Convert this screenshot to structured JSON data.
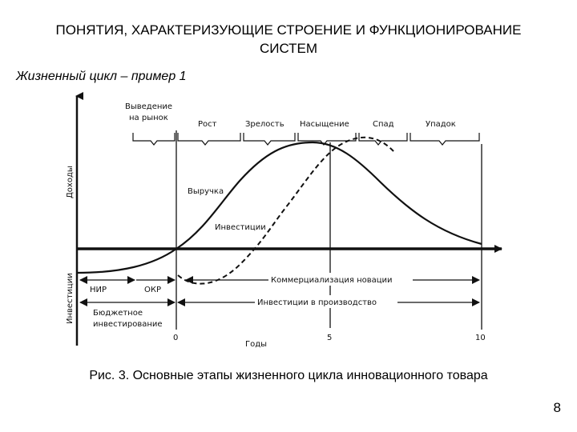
{
  "slide": {
    "title": "ПОНЯТИЯ, ХАРАКТЕРИЗУЮЩИЕ СТРОЕНИЕ И ФУНКЦИОНИРОВАНИЕ  СИСТЕМ",
    "subtitle": "Жизненный цикл – пример 1",
    "caption": "Рис. 3. Основные этапы жизненного цикла инновационного товара",
    "page_number": "8"
  },
  "diagram": {
    "y_axis_top_label": "Доходы",
    "y_axis_bottom_label": "Инвестиции",
    "x_axis_label": "Годы",
    "x_ticks": [
      "0",
      "5",
      "10"
    ],
    "stages": [
      {
        "line1": "Выведение",
        "line2": "на рынок"
      },
      {
        "line1": "Рост",
        "line2": ""
      },
      {
        "line1": "Зрелость",
        "line2": ""
      },
      {
        "line1": "Насыщение",
        "line2": ""
      },
      {
        "line1": "Спад",
        "line2": ""
      },
      {
        "line1": "Упадок",
        "line2": ""
      }
    ],
    "curve_labels": {
      "revenue": "Выручка",
      "investment": "Инвестиции"
    },
    "phase_labels": {
      "rnd": "НИР",
      "okr": "ОКР",
      "budget_line1": "Бюджетное",
      "budget_line2": "инвестирование",
      "commercialization": "Коммерциализация новации",
      "production_investment": "Инвестиции в производство"
    },
    "colors": {
      "ink": "#111111",
      "background": "#ffffff"
    }
  }
}
